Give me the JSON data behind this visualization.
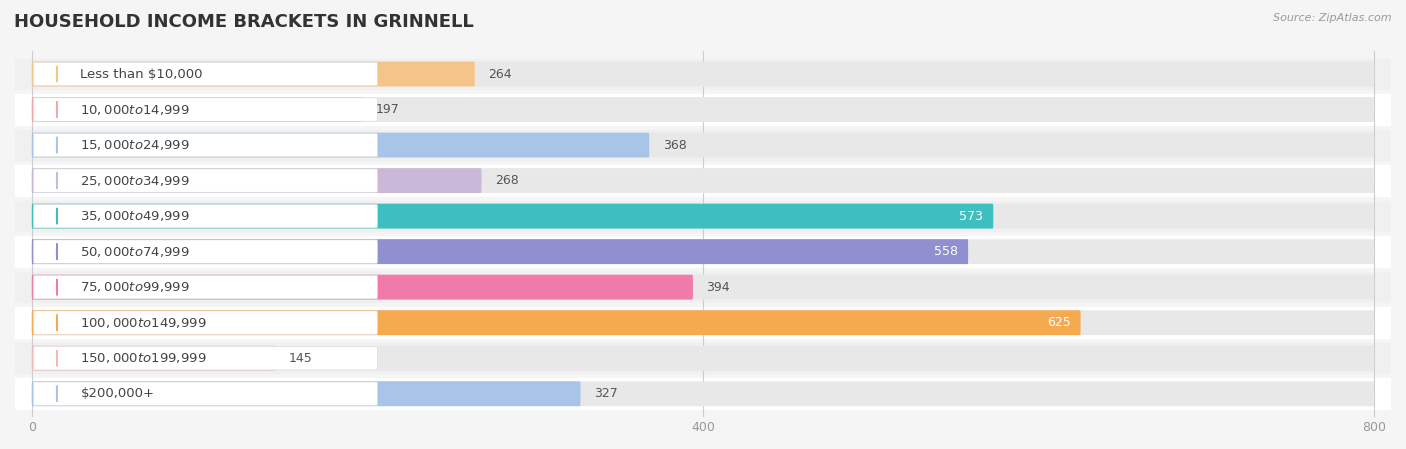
{
  "title": "HOUSEHOLD INCOME BRACKETS IN GRINNELL",
  "source": "Source: ZipAtlas.com",
  "categories": [
    "Less than $10,000",
    "$10,000 to $14,999",
    "$15,000 to $24,999",
    "$25,000 to $34,999",
    "$35,000 to $49,999",
    "$50,000 to $74,999",
    "$75,000 to $99,999",
    "$100,000 to $149,999",
    "$150,000 to $199,999",
    "$200,000+"
  ],
  "values": [
    264,
    197,
    368,
    268,
    573,
    558,
    394,
    625,
    145,
    327
  ],
  "bar_colors": [
    "#f5c48a",
    "#f4a9a8",
    "#a8c4e8",
    "#c9b8d8",
    "#3dbfbf",
    "#9090d0",
    "#f07aaa",
    "#f5aa50",
    "#f4b8b8",
    "#a8c4e8"
  ],
  "label_colors": [
    "#555555",
    "#555555",
    "#555555",
    "#555555",
    "white",
    "white",
    "#555555",
    "white",
    "#555555",
    "#555555"
  ],
  "xlim": [
    -10,
    800
  ],
  "xticks": [
    0,
    400,
    800
  ],
  "row_bg_colors": [
    "#f0f0f0",
    "#ffffff"
  ],
  "background_color": "#f5f5f5",
  "bar_bg_color": "#e8e8e8",
  "title_fontsize": 13,
  "label_fontsize": 9.5,
  "value_fontsize": 9
}
